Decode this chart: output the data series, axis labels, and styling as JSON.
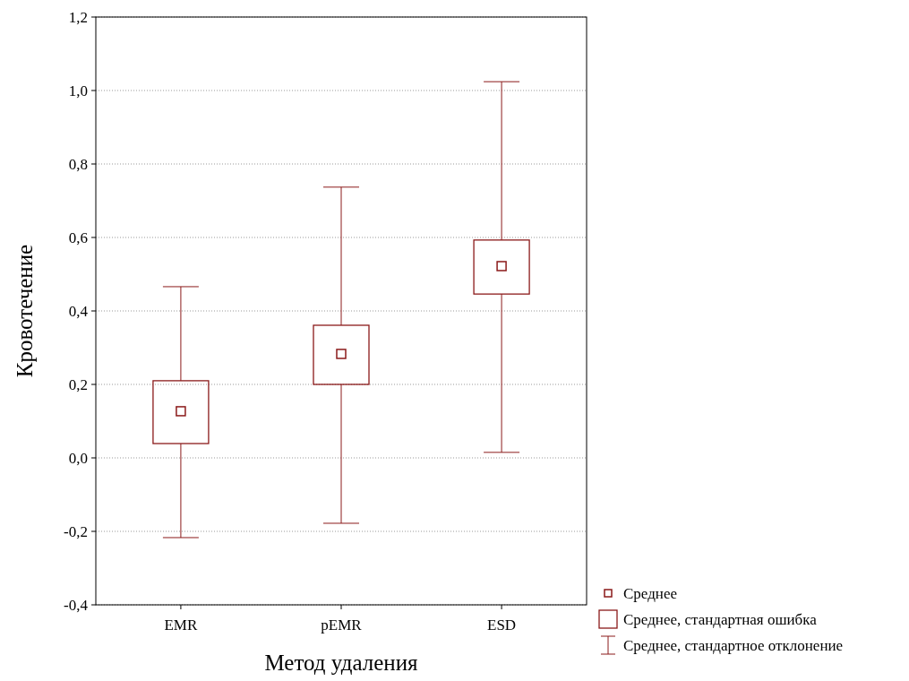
{
  "chart_data": {
    "type": "box",
    "xlabel": "Метод удаления",
    "ylabel": "Кровотечение",
    "categories": [
      "EMR",
      "pEMR",
      "ESD"
    ],
    "series": [
      {
        "color": "#8b1a1a",
        "boxes": [
          {
            "low": -0.217,
            "q1": 0.039,
            "median": 0.127,
            "q3": 0.21,
            "high": 0.466
          },
          {
            "low": -0.178,
            "q1": 0.2,
            "median": 0.283,
            "q3": 0.361,
            "high": 0.737
          },
          {
            "low": 0.015,
            "q1": 0.446,
            "median": 0.522,
            "q3": 0.593,
            "high": 1.024
          }
        ]
      }
    ],
    "ylim": [
      -0.4,
      1.2
    ],
    "yticks": [
      {
        "value": -0.4,
        "label": "-0,4"
      },
      {
        "value": -0.2,
        "label": "-0,2"
      },
      {
        "value": 0,
        "label": "0,0"
      },
      {
        "value": 0.2,
        "label": "0,2"
      },
      {
        "value": 0.4,
        "label": "0,4"
      },
      {
        "value": 0.6,
        "label": "0,6"
      },
      {
        "value": 0.8,
        "label": "0,8"
      },
      {
        "value": 1.0,
        "label": "1,0"
      },
      {
        "value": 1.2,
        "label": "1,2"
      }
    ],
    "grid": "y",
    "annotations": [
      "Среднее",
      "Среднее, стандартная ошибка",
      "Среднее, стандартное отклонение"
    ]
  }
}
